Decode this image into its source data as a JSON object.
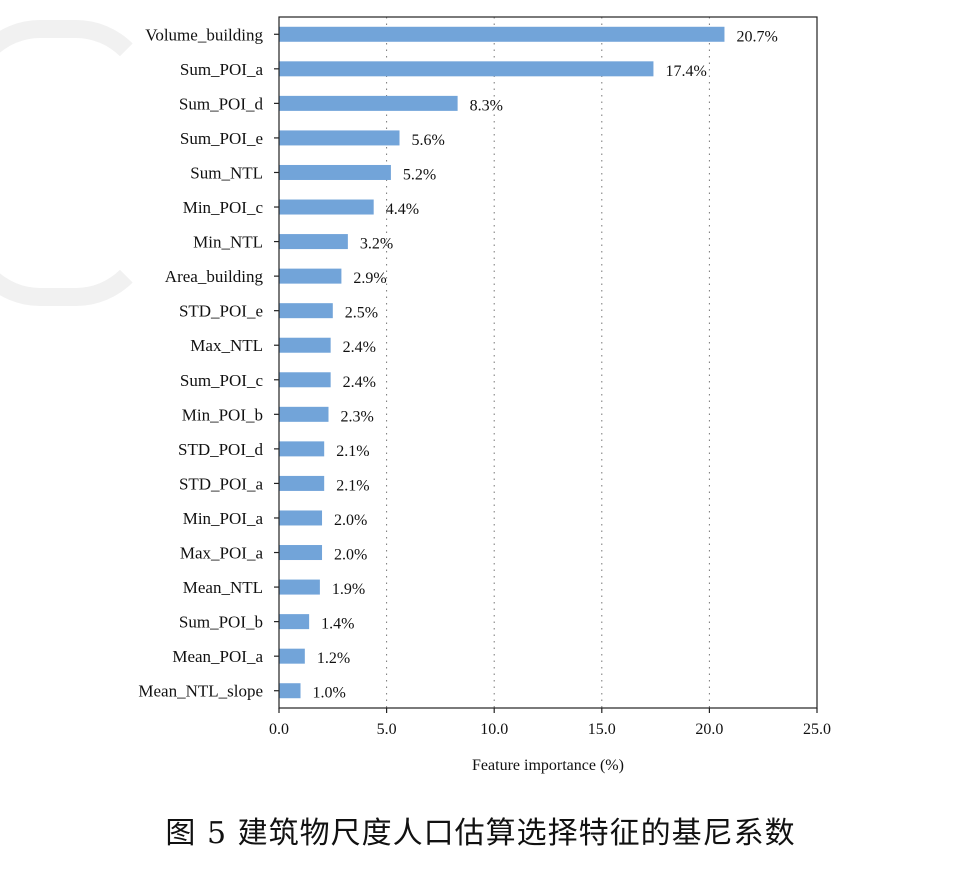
{
  "chart_data": {
    "type": "bar",
    "orientation": "horizontal",
    "categories": [
      "Volume_building",
      "Sum_POI_a",
      "Sum_POI_d",
      "Sum_POI_e",
      "Sum_NTL",
      "Min_POI_c",
      "Min_NTL",
      "Area_building",
      "STD_POI_e",
      "Max_NTL",
      "Sum_POI_c",
      "Min_POI_b",
      "STD_POI_d",
      "STD_POI_a",
      "Min_POI_a",
      "Max_POI_a",
      "Mean_NTL",
      "Sum_POI_b",
      "Mean_POI_a",
      "Mean_NTL_slope"
    ],
    "values": [
      20.7,
      17.4,
      8.3,
      5.6,
      5.2,
      4.4,
      3.2,
      2.9,
      2.5,
      2.4,
      2.4,
      2.3,
      2.1,
      2.1,
      2.0,
      2.0,
      1.9,
      1.4,
      1.2,
      1.0
    ],
    "value_labels": [
      "20.7%",
      "17.4%",
      "8.3%",
      "5.6%",
      "5.2%",
      "4.4%",
      "3.2%",
      "2.9%",
      "2.5%",
      "2.4%",
      "2.4%",
      "2.3%",
      "2.1%",
      "2.1%",
      "2.0%",
      "2.0%",
      "1.9%",
      "1.4%",
      "1.2%",
      "1.0%"
    ],
    "xlabel": "Feature importance (%)",
    "xlim": [
      0,
      25
    ],
    "xticks": [
      0,
      5,
      10,
      15,
      20,
      25
    ],
    "xtick_labels": [
      "0.0",
      "5.0",
      "10.0",
      "15.0",
      "20.0",
      "25.0"
    ],
    "grid": "vertical-dotted",
    "bar_color": "#72a4d9"
  },
  "caption": "图 5  建筑物尺度人口估算选择特征的基尼系数"
}
